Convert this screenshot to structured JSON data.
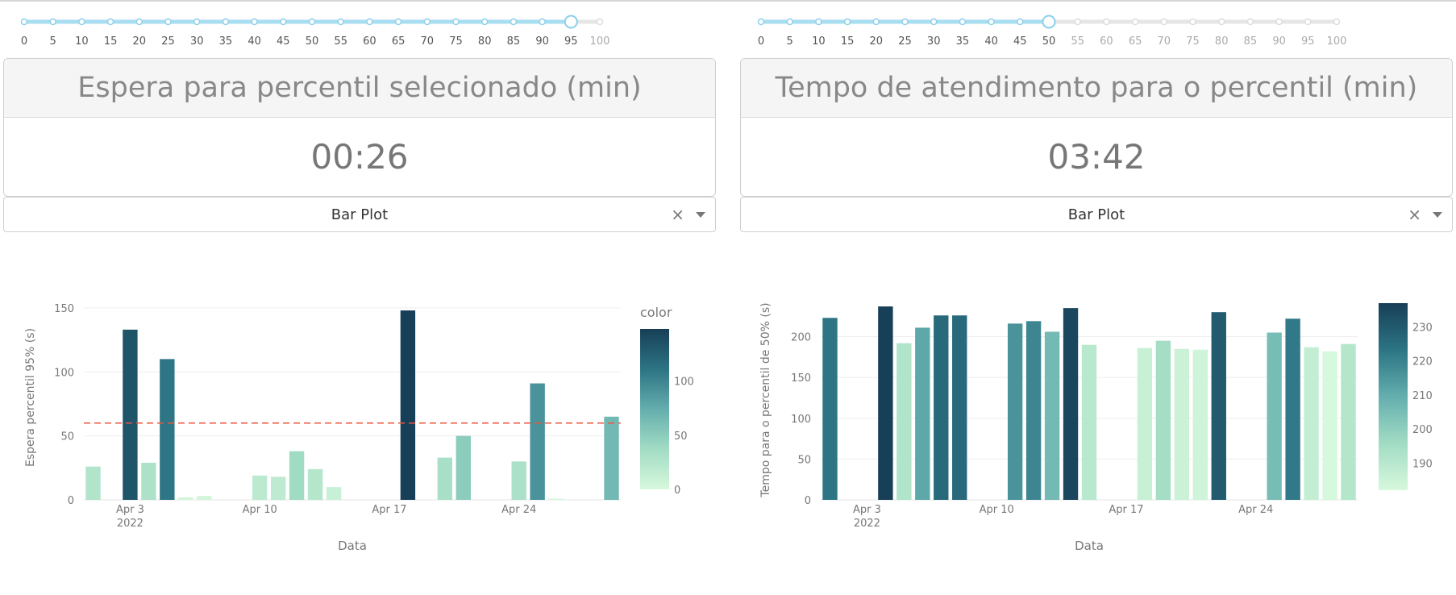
{
  "panels": [
    {
      "slider": {
        "ticks": [
          "0",
          "5",
          "10",
          "15",
          "20",
          "25",
          "30",
          "35",
          "40",
          "45",
          "50",
          "55",
          "60",
          "65",
          "70",
          "75",
          "80",
          "85",
          "90",
          "95",
          "100"
        ],
        "value": 95
      },
      "card": {
        "title": "Espera para percentil selecionado (min)",
        "value": "00:26"
      },
      "dropdown": {
        "selected": "Bar Plot",
        "clear_icon": "×"
      },
      "chart_data": {
        "type": "bar",
        "xlabel": "Data",
        "ylabel": "Espera percentil 95% (s)",
        "ylim": [
          0,
          160
        ],
        "yticks": [
          0,
          50,
          100,
          150
        ],
        "xticks": [
          {
            "date": "2022-04-03",
            "label": "Apr 3",
            "sublabel": "2022"
          },
          {
            "date": "2022-04-10",
            "label": "Apr 10",
            "sublabel": ""
          },
          {
            "date": "2022-04-17",
            "label": "Apr 17",
            "sublabel": ""
          },
          {
            "date": "2022-04-24",
            "label": "Apr 24",
            "sublabel": ""
          }
        ],
        "x": [
          "2022-04-01",
          "2022-04-02",
          "2022-04-03",
          "2022-04-04",
          "2022-04-05",
          "2022-04-06",
          "2022-04-07",
          "2022-04-08",
          "2022-04-09",
          "2022-04-10",
          "2022-04-11",
          "2022-04-12",
          "2022-04-13",
          "2022-04-14",
          "2022-04-15",
          "2022-04-16",
          "2022-04-17",
          "2022-04-18",
          "2022-04-19",
          "2022-04-20",
          "2022-04-21",
          "2022-04-22",
          "2022-04-23",
          "2022-04-24",
          "2022-04-25",
          "2022-04-26",
          "2022-04-27",
          "2022-04-28",
          "2022-04-29"
        ],
        "values": [
          26,
          0,
          133,
          29,
          110,
          2,
          3,
          0,
          0,
          19,
          18,
          38,
          24,
          10,
          0,
          0,
          0,
          148,
          0,
          33,
          50,
          0,
          0,
          30,
          91,
          1,
          0,
          0,
          65
        ],
        "reference_line": {
          "y": 60,
          "color": "#ef553b"
        },
        "colorbar": {
          "title": "color",
          "range": [
            0,
            148
          ],
          "ticks": [
            0,
            50,
            100
          ]
        }
      }
    },
    {
      "slider": {
        "ticks": [
          "0",
          "5",
          "10",
          "15",
          "20",
          "25",
          "30",
          "35",
          "40",
          "45",
          "50",
          "55",
          "60",
          "65",
          "70",
          "75",
          "80",
          "85",
          "90",
          "95",
          "100"
        ],
        "value": 50
      },
      "card": {
        "title": "Tempo de atendimento para o percentil (min)",
        "value": "03:42"
      },
      "dropdown": {
        "selected": "Bar Plot",
        "clear_icon": "×"
      },
      "chart_data": {
        "type": "bar",
        "xlabel": "Data",
        "ylabel": "Tempo para o percentil de 50% (s)",
        "ylim": [
          0,
          245
        ],
        "yticks": [
          0,
          50,
          100,
          150,
          200
        ],
        "xticks": [
          {
            "date": "2022-04-03",
            "label": "Apr 3",
            "sublabel": "2022"
          },
          {
            "date": "2022-04-10",
            "label": "Apr 10",
            "sublabel": ""
          },
          {
            "date": "2022-04-17",
            "label": "Apr 17",
            "sublabel": ""
          },
          {
            "date": "2022-04-24",
            "label": "Apr 24",
            "sublabel": ""
          }
        ],
        "x": [
          "2022-04-01",
          "2022-04-02",
          "2022-04-03",
          "2022-04-04",
          "2022-04-05",
          "2022-04-06",
          "2022-04-07",
          "2022-04-08",
          "2022-04-09",
          "2022-04-10",
          "2022-04-11",
          "2022-04-12",
          "2022-04-13",
          "2022-04-14",
          "2022-04-15",
          "2022-04-16",
          "2022-04-17",
          "2022-04-18",
          "2022-04-19",
          "2022-04-20",
          "2022-04-21",
          "2022-04-22",
          "2022-04-23",
          "2022-04-24",
          "2022-04-25",
          "2022-04-26",
          "2022-04-27",
          "2022-04-28",
          "2022-04-29"
        ],
        "values": [
          223,
          0,
          0,
          237,
          192,
          211,
          226,
          226,
          0,
          0,
          216,
          219,
          206,
          235,
          190,
          0,
          0,
          186,
          195,
          185,
          184,
          230,
          0,
          0,
          205,
          222,
          187,
          182,
          191
        ],
        "colorbar": {
          "title": "",
          "range": [
            182,
            237
          ],
          "ticks": [
            190,
            200,
            210,
            220,
            230
          ]
        }
      }
    }
  ],
  "colors": {
    "slider_active": "#a9def0",
    "slider_inactive": "#e6e6e6",
    "colorscale": [
      "#d6f8dc",
      "#a2dcc4",
      "#64aeae",
      "#2c7484",
      "#173f57"
    ]
  }
}
